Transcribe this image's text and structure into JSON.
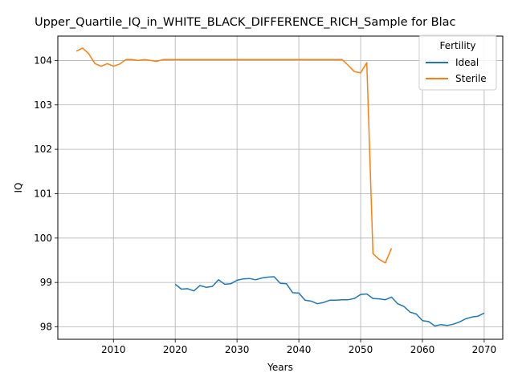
{
  "chart_data": {
    "type": "line",
    "title": "Upper_Quartile_IQ_in_WHITE_BLACK_DIFFERENCE_RICH_Sample for Blac",
    "xlabel": "Years",
    "ylabel": "IQ",
    "xlim": [
      2001,
      2073
    ],
    "ylim": [
      97.72,
      104.55
    ],
    "xticks": [
      2010,
      2020,
      2030,
      2040,
      2050,
      2060,
      2070
    ],
    "yticks": [
      98,
      99,
      100,
      101,
      102,
      103,
      104
    ],
    "grid": true,
    "legend": {
      "title": "Fertility",
      "placement": "upper right"
    },
    "series": [
      {
        "name": "Ideal",
        "color": "#1f77b4",
        "points": [
          [
            2020,
            98.96
          ],
          [
            2021,
            98.85
          ],
          [
            2022,
            98.86
          ],
          [
            2023,
            98.81
          ],
          [
            2024,
            98.93
          ],
          [
            2025,
            98.89
          ],
          [
            2026,
            98.91
          ],
          [
            2027,
            99.06
          ],
          [
            2028,
            98.96
          ],
          [
            2029,
            98.97
          ],
          [
            2030,
            99.05
          ],
          [
            2031,
            99.08
          ],
          [
            2032,
            99.09
          ],
          [
            2033,
            99.06
          ],
          [
            2034,
            99.1
          ],
          [
            2035,
            99.12
          ],
          [
            2036,
            99.13
          ],
          [
            2037,
            98.98
          ],
          [
            2038,
            98.97
          ],
          [
            2039,
            98.77
          ],
          [
            2040,
            98.76
          ],
          [
            2041,
            98.6
          ],
          [
            2042,
            98.58
          ],
          [
            2043,
            98.52
          ],
          [
            2044,
            98.55
          ],
          [
            2045,
            98.6
          ],
          [
            2046,
            98.6
          ],
          [
            2047,
            98.61
          ],
          [
            2048,
            98.61
          ],
          [
            2049,
            98.64
          ],
          [
            2050,
            98.73
          ],
          [
            2051,
            98.74
          ],
          [
            2052,
            98.64
          ],
          [
            2053,
            98.63
          ],
          [
            2054,
            98.61
          ],
          [
            2055,
            98.67
          ],
          [
            2056,
            98.52
          ],
          [
            2057,
            98.46
          ],
          [
            2058,
            98.33
          ],
          [
            2059,
            98.29
          ],
          [
            2060,
            98.14
          ],
          [
            2061,
            98.12
          ],
          [
            2062,
            98.02
          ],
          [
            2063,
            98.05
          ],
          [
            2064,
            98.03
          ],
          [
            2065,
            98.06
          ],
          [
            2066,
            98.11
          ],
          [
            2067,
            98.18
          ],
          [
            2068,
            98.22
          ],
          [
            2069,
            98.24
          ],
          [
            2070,
            98.31
          ]
        ]
      },
      {
        "name": "Sterile",
        "color": "#ff7f0e",
        "points": [
          [
            2004,
            104.21
          ],
          [
            2005,
            104.28
          ],
          [
            2006,
            104.15
          ],
          [
            2007,
            103.93
          ],
          [
            2008,
            103.87
          ],
          [
            2009,
            103.93
          ],
          [
            2010,
            103.87
          ],
          [
            2011,
            103.92
          ],
          [
            2012,
            104.02
          ],
          [
            2013,
            104.02
          ],
          [
            2014,
            104.0
          ],
          [
            2015,
            104.02
          ],
          [
            2016,
            104.0
          ],
          [
            2017,
            103.98
          ],
          [
            2018,
            104.02
          ],
          [
            2019,
            104.02
          ],
          [
            2020,
            104.02
          ],
          [
            2025,
            104.02
          ],
          [
            2030,
            104.02
          ],
          [
            2035,
            104.02
          ],
          [
            2040,
            104.02
          ],
          [
            2045,
            104.02
          ],
          [
            2047,
            104.02
          ],
          [
            2048,
            103.89
          ],
          [
            2049,
            103.75
          ],
          [
            2050,
            103.72
          ],
          [
            2051,
            103.95
          ],
          [
            2052,
            99.65
          ],
          [
            2053,
            99.52
          ],
          [
            2054,
            99.44
          ],
          [
            2055,
            99.77
          ]
        ]
      }
    ]
  }
}
